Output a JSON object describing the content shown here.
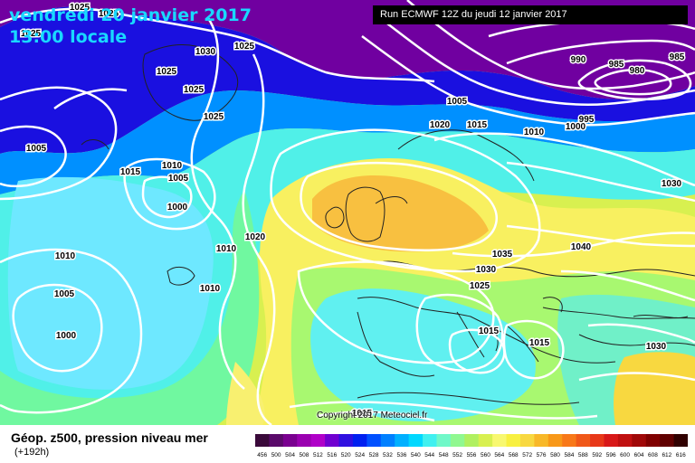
{
  "title": {
    "day": "vendredi 20 janvier 2017",
    "time": "13:00 locale"
  },
  "run_info": "Run ECMWF 12Z du jeudi 12 janvier 2017",
  "copyright": "Copyright 2017 Meteociel.fr",
  "field_label": "Géop. z500, pression niveau mer",
  "lead_time": "(+192h)",
  "isobar_labels": [
    "1025",
    "1025",
    "1025",
    "1030",
    "1025",
    "1025",
    "1025",
    "1025",
    "1005",
    "1015",
    "1010",
    "1005",
    "1000",
    "1010",
    "1020",
    "1010",
    "1010",
    "1005",
    "1000",
    "1020",
    "1015",
    "1005",
    "1010",
    "1000",
    "995",
    "990",
    "985",
    "980",
    "985",
    "1030",
    "1035",
    "1030",
    "1040",
    "1025",
    "1015",
    "1015",
    "1030",
    "1015"
  ],
  "legend": {
    "values": [
      "456",
      "500",
      "504",
      "508",
      "512",
      "516",
      "520",
      "524",
      "528",
      "532",
      "536",
      "540",
      "544",
      "548",
      "552",
      "556",
      "560",
      "564",
      "568",
      "572",
      "576",
      "580",
      "584",
      "588",
      "592",
      "596",
      "600",
      "604",
      "608",
      "612",
      "616"
    ],
    "colors": [
      "#3a0a3a",
      "#5a0a6a",
      "#7a0090",
      "#9a00b0",
      "#b000c8",
      "#7000d0",
      "#3010e0",
      "#0020f0",
      "#0050ff",
      "#0080ff",
      "#00b0ff",
      "#00d8ff",
      "#40f0f0",
      "#70f8c8",
      "#90f890",
      "#b0f060",
      "#d8f050",
      "#f8f870",
      "#f8f040",
      "#f8d840",
      "#f8b828",
      "#f89818",
      "#f87818",
      "#f05818",
      "#e83818",
      "#d81818",
      "#c01010",
      "#a00808",
      "#800000",
      "#600000",
      "#300000"
    ]
  }
}
